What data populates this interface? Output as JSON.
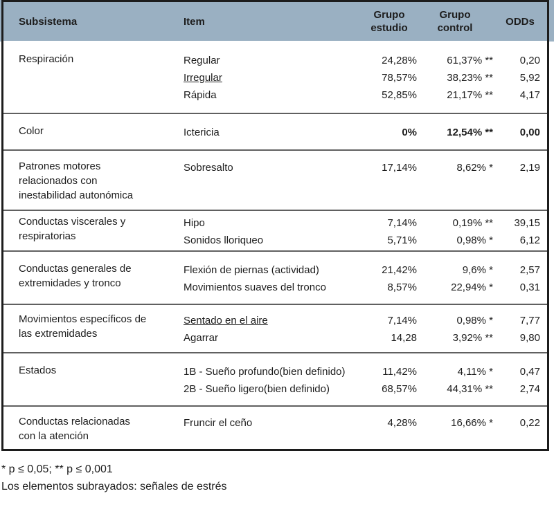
{
  "colors": {
    "header_bg": "#9ab0c2",
    "table_border": "#1c1c1c",
    "section_separator": "#606060",
    "text": "#1d1d1d"
  },
  "table": {
    "headers": {
      "subsystem": "Subsistema",
      "item": "Item",
      "study": "Grupo\nestudio",
      "control": "Grupo\ncontrol",
      "odds": "ODDs"
    },
    "sections": [
      {
        "subsystem": "Respiración",
        "rows": [
          {
            "item": "Regular",
            "study": "24,28%",
            "control": "61,37% **",
            "odds": "0,20"
          },
          {
            "item": "Irregular",
            "study": "78,57%",
            "control": "38,23% **",
            "odds": "5,92"
          },
          {
            "item": "Rápida",
            "study": "52,85%",
            "control": "21,17% **",
            "odds": "4,17"
          }
        ]
      },
      {
        "subsystem": "Color",
        "rows": [
          {
            "item": "Ictericia",
            "study": "0%",
            "control": "12,54% **",
            "odds": "0,00"
          }
        ]
      },
      {
        "subsystem": "Patrones motores\nrelacionados con\ninestabilidad autonómica",
        "rows": [
          {
            "item": "Sobresalto",
            "study": "17,14%",
            "control": "8,62% *",
            "odds": "2,19"
          }
        ]
      },
      {
        "subsystem": "Conductas viscerales y\nrespiratorias",
        "rows": [
          {
            "item": "Hipo",
            "study": "7,14%",
            "control": "0,19% **",
            "odds": "39,15"
          },
          {
            "item": "Sonidos lloriqueo",
            "study": "5,71%",
            "control": "0,98% *",
            "odds": "6,12"
          }
        ]
      },
      {
        "subsystem": "Conductas generales de\nextremidades y tronco",
        "rows": [
          {
            "item": "Flexión de piernas (actividad)",
            "study": "21,42%",
            "control": "9,6% *",
            "odds": "2,57"
          },
          {
            "item": "Movimientos suaves del tronco",
            "study": "8,57%",
            "control": "22,94% *",
            "odds": "0,31"
          }
        ]
      },
      {
        "subsystem": "Movimientos específicos de\nlas extremidades",
        "rows": [
          {
            "item": "Sentado en el aire",
            "study": "7,14%",
            "control": "0,98% *",
            "odds": "7,77"
          },
          {
            "item": "Agarrar",
            "study": "14,28",
            "control": "3,92% **",
            "odds": "9,80"
          }
        ]
      },
      {
        "subsystem": "Estados",
        "rows": [
          {
            "item": "1B - Sueño profundo(bien definido)",
            "study": "11,42%",
            "control": "4,11% *",
            "odds": "0,47"
          },
          {
            "item": "2B - Sueño ligero(bien definido)",
            "study": "68,57%",
            "control": "44,31% **",
            "odds": "2,74"
          }
        ]
      },
      {
        "subsystem": "Conductas relacionadas\ncon la atención",
        "rows": [
          {
            "item": "Fruncir el ceño",
            "study": "4,28%",
            "control": "16,66% *",
            "odds": "0,22"
          }
        ]
      }
    ]
  },
  "footnotes": {
    "significance": "* p ≤ 0,05; ** p ≤ 0,001",
    "underline_note": "Los elementos subrayados: señales de estrés"
  }
}
